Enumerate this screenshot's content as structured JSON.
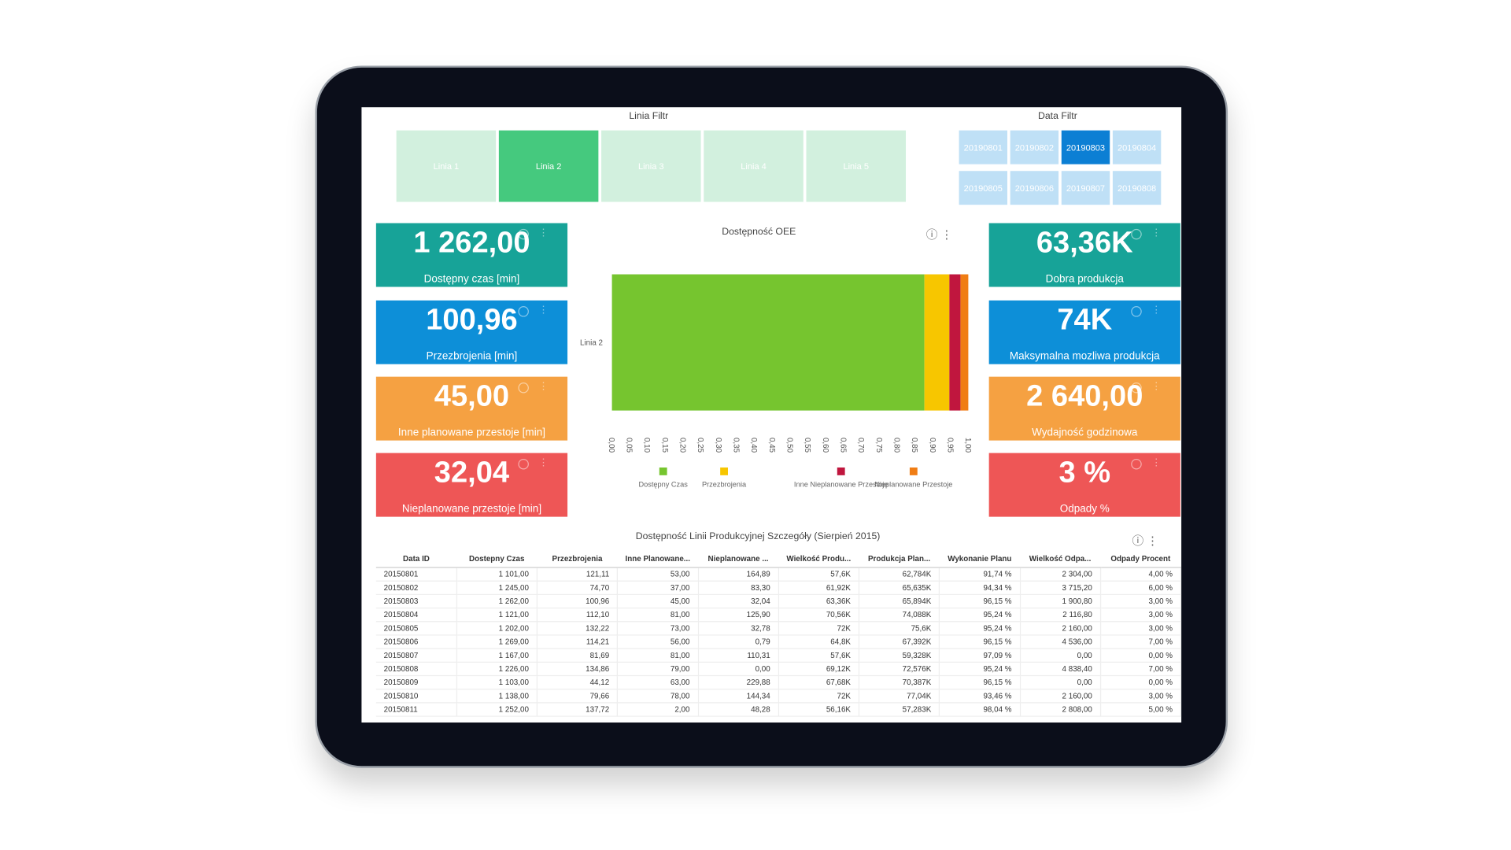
{
  "line_filter": {
    "title": "Linia Filtr",
    "options": [
      "Linia 1",
      "Linia 2",
      "Linia 3",
      "Linia 4",
      "Linia 5"
    ],
    "selected": 1
  },
  "date_filter": {
    "title": "Data Filtr",
    "options": [
      "20190801",
      "20190802",
      "20190803",
      "20190804",
      "20190805",
      "20190806",
      "20190807",
      "20190808"
    ],
    "selected": 2
  },
  "kpis_left": [
    {
      "value": "1 262,00",
      "label": "Dostępny czas [min]"
    },
    {
      "value": "100,96",
      "label": "Przezbrojenia [min]"
    },
    {
      "value": "45,00",
      "label": "Inne planowane przestoje [min]"
    },
    {
      "value": "32,04",
      "label": "Nieplanowane przestoje [min]"
    }
  ],
  "kpis_right": [
    {
      "value": "63,36K",
      "label": "Dobra produkcja"
    },
    {
      "value": "74K",
      "label": "Maksymalna mozliwa produkcja"
    },
    {
      "value": "2 640,00",
      "label": "Wydajność godzinowa"
    },
    {
      "value": "3 %",
      "label": "Odpady %"
    }
  ],
  "chart_data": {
    "type": "bar",
    "orientation": "horizontal",
    "stacked": true,
    "title": "Dostępność OEE",
    "categories": [
      "Linia 2"
    ],
    "series": [
      {
        "name": "Dostępny Czas",
        "color": "#76c52f",
        "values": [
          0.876
        ]
      },
      {
        "name": "Przezbrojenia",
        "color": "#f7c600",
        "values": [
          0.07
        ]
      },
      {
        "name": "Inne Nieplanowane Przestoje",
        "color": "#c0163e",
        "values": [
          0.031
        ]
      },
      {
        "name": "Nieplanowane Przestoje",
        "color": "#f07d14",
        "values": [
          0.022
        ]
      }
    ],
    "xlim": [
      0,
      1
    ],
    "xticks": [
      {
        "value": 0,
        "label": "0,00"
      },
      {
        "value": 0.05,
        "label": "0,05"
      },
      {
        "value": 0.1,
        "label": "0,10"
      },
      {
        "value": 0.15,
        "label": "0,15"
      },
      {
        "value": 0.2,
        "label": "0,20"
      },
      {
        "value": 0.25,
        "label": "0,25"
      },
      {
        "value": 0.3,
        "label": "0,30"
      },
      {
        "value": 0.35,
        "label": "0,35"
      },
      {
        "value": 0.4,
        "label": "0,40"
      },
      {
        "value": 0.45,
        "label": "0,45"
      },
      {
        "value": 0.5,
        "label": "0,50"
      },
      {
        "value": 0.55,
        "label": "0,55"
      },
      {
        "value": 0.6,
        "label": "0,60"
      },
      {
        "value": 0.65,
        "label": "0,65"
      },
      {
        "value": 0.7,
        "label": "0,70"
      },
      {
        "value": 0.75,
        "label": "0,75"
      },
      {
        "value": 0.8,
        "label": "0,80"
      },
      {
        "value": 0.85,
        "label": "0,85"
      },
      {
        "value": 0.9,
        "label": "0,90"
      },
      {
        "value": 0.95,
        "label": "0,95"
      },
      {
        "value": 1,
        "label": "1,00"
      }
    ]
  },
  "table": {
    "title": "Dostępność Linii Produkcyjnej Szczegóły (Sierpień 2015)",
    "columns": [
      "Data ID",
      "Dostepny Czas",
      "Przezbrojenia",
      "Inne Planowane...",
      "Nieplanowane ...",
      "Wielkość Produ...",
      "Produkcja Plan...",
      "Wykonanie Planu",
      "Wielkość Odpa...",
      "Odpady Procent"
    ],
    "rows": [
      [
        "20150801",
        "1 101,00",
        "121,11",
        "53,00",
        "164,89",
        "57,6K",
        "62,784K",
        "91,74 %",
        "2 304,00",
        "4,00 %"
      ],
      [
        "20150802",
        "1 245,00",
        "74,70",
        "37,00",
        "83,30",
        "61,92K",
        "65,635K",
        "94,34 %",
        "3 715,20",
        "6,00 %"
      ],
      [
        "20150803",
        "1 262,00",
        "100,96",
        "45,00",
        "32,04",
        "63,36K",
        "65,894K",
        "96,15 %",
        "1 900,80",
        "3,00 %"
      ],
      [
        "20150804",
        "1 121,00",
        "112,10",
        "81,00",
        "125,90",
        "70,56K",
        "74,088K",
        "95,24 %",
        "2 116,80",
        "3,00 %"
      ],
      [
        "20150805",
        "1 202,00",
        "132,22",
        "73,00",
        "32,78",
        "72K",
        "75,6K",
        "95,24 %",
        "2 160,00",
        "3,00 %"
      ],
      [
        "20150806",
        "1 269,00",
        "114,21",
        "56,00",
        "0,79",
        "64,8K",
        "67,392K",
        "96,15 %",
        "4 536,00",
        "7,00 %"
      ],
      [
        "20150807",
        "1 167,00",
        "81,69",
        "81,00",
        "110,31",
        "57,6K",
        "59,328K",
        "97,09 %",
        "0,00",
        "0,00 %"
      ],
      [
        "20150808",
        "1 226,00",
        "134,86",
        "79,00",
        "0,00",
        "69,12K",
        "72,576K",
        "95,24 %",
        "4 838,40",
        "7,00 %"
      ],
      [
        "20150809",
        "1 103,00",
        "44,12",
        "63,00",
        "229,88",
        "67,68K",
        "70,387K",
        "96,15 %",
        "0,00",
        "0,00 %"
      ],
      [
        "20150810",
        "1 138,00",
        "79,66",
        "78,00",
        "144,34",
        "72K",
        "77,04K",
        "93,46 %",
        "2 160,00",
        "3,00 %"
      ],
      [
        "20150811",
        "1 252,00",
        "137,72",
        "2,00",
        "48,28",
        "56,16K",
        "57,283K",
        "98,04 %",
        "2 808,00",
        "5,00 %"
      ]
    ]
  }
}
